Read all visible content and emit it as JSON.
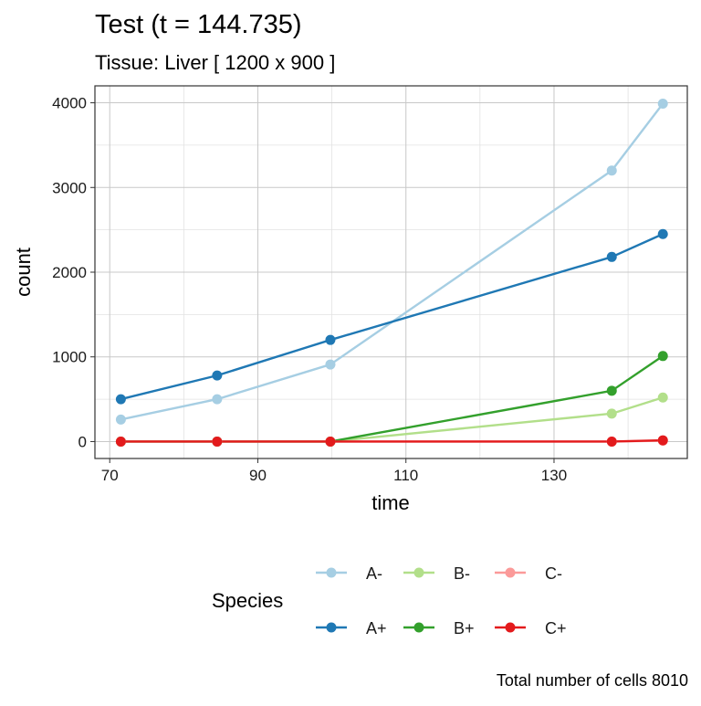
{
  "chart_data": {
    "type": "line",
    "title": "Test (t = 144.735)",
    "subtitle": "Tissue: Liver [ 1200 x 900 ]",
    "xlabel": "time",
    "ylabel": "count",
    "caption": "Total number of cells 8010",
    "xlim": [
      68,
      148
    ],
    "ylim": [
      -200,
      4200
    ],
    "x_ticks": [
      70,
      90,
      110,
      130
    ],
    "y_ticks": [
      0,
      1000,
      2000,
      3000,
      4000
    ],
    "grid": true,
    "legend_title": "Species",
    "legend_position": "bottom",
    "x": [
      71.5,
      84.5,
      99.8,
      137.8,
      144.7
    ],
    "series": [
      {
        "name": "A-",
        "color": "#a6cee3",
        "values": [
          260,
          500,
          910,
          3200,
          3990
        ]
      },
      {
        "name": "A+",
        "color": "#1f78b4",
        "values": [
          500,
          780,
          1200,
          2180,
          2450
        ]
      },
      {
        "name": "B-",
        "color": "#b2df8a",
        "values": [
          0,
          0,
          0,
          330,
          520
        ]
      },
      {
        "name": "B+",
        "color": "#33a02c",
        "values": [
          0,
          0,
          0,
          600,
          1010
        ]
      },
      {
        "name": "C-",
        "color": "#fb9a99",
        "values": [
          0,
          0,
          0,
          0,
          10
        ]
      },
      {
        "name": "C+",
        "color": "#e31a1c",
        "values": [
          0,
          0,
          0,
          0,
          15
        ]
      }
    ],
    "legend_order": [
      "A-",
      "B-",
      "C-",
      "A+",
      "B+",
      "C+"
    ]
  }
}
